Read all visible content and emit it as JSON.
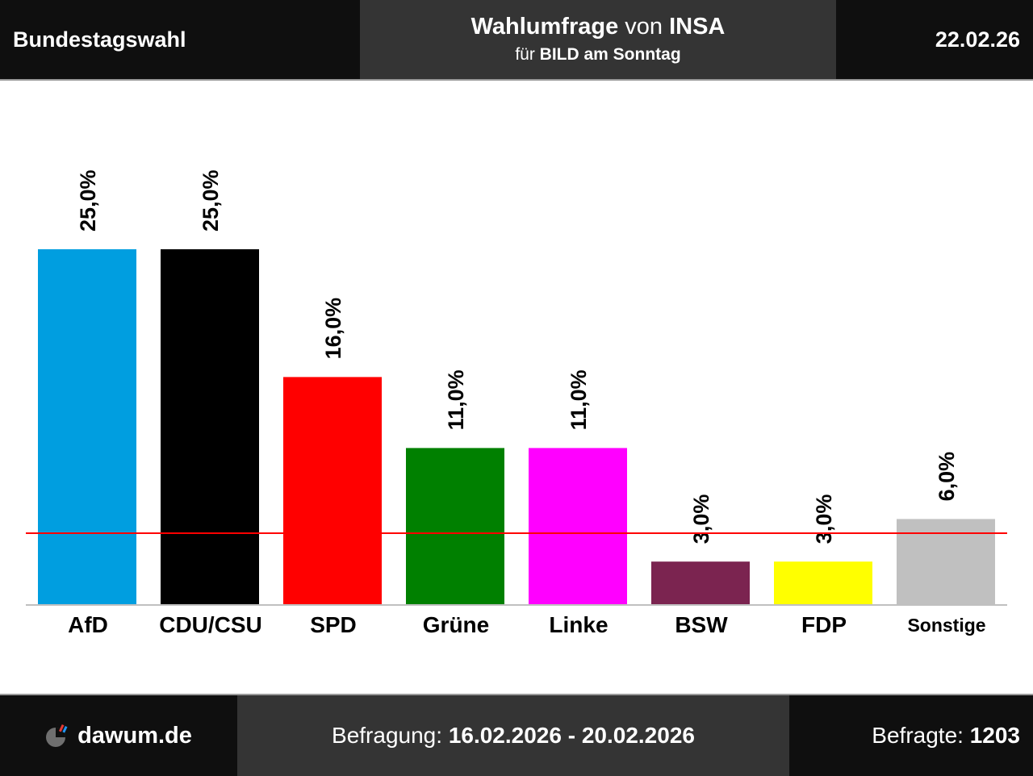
{
  "header": {
    "left": "Bundestagswahl",
    "title_bold_1": "Wahlumfrage",
    "title_normal": " von ",
    "title_bold_2": "INSA",
    "subtitle_normal": "für ",
    "subtitle_bold": "BILD am Sonntag",
    "date": "22.02.26"
  },
  "footer": {
    "site": "dawum.de",
    "period_label": "Befragung: ",
    "period_value": "16.02.2026 - 20.02.2026",
    "respondents_label": "Befragte: ",
    "respondents_value": "1203"
  },
  "colors": {
    "header_bg": "#0f0f0f",
    "header_mid_bg": "#343434",
    "threshold": "#ff0000",
    "axis": "#c0c0c0"
  },
  "chart_data": {
    "type": "bar",
    "categories": [
      "AfD",
      "CDU/CSU",
      "SPD",
      "Grüne",
      "Linke",
      "BSW",
      "FDP",
      "Sonstige"
    ],
    "values": [
      25.0,
      25.0,
      16.0,
      11.0,
      11.0,
      3.0,
      3.0,
      6.0
    ],
    "value_labels": [
      "25,0%",
      "25,0%",
      "16,0%",
      "11,0%",
      "11,0%",
      "3,0%",
      "3,0%",
      "6,0%"
    ],
    "colors": [
      "#009ee0",
      "#000000",
      "#ff0000",
      "#008000",
      "#ff00ff",
      "#7b2450",
      "#ffff00",
      "#c0c0c0"
    ],
    "threshold": 5,
    "ylim": [
      0,
      25
    ],
    "grid": false,
    "legend": "none"
  }
}
